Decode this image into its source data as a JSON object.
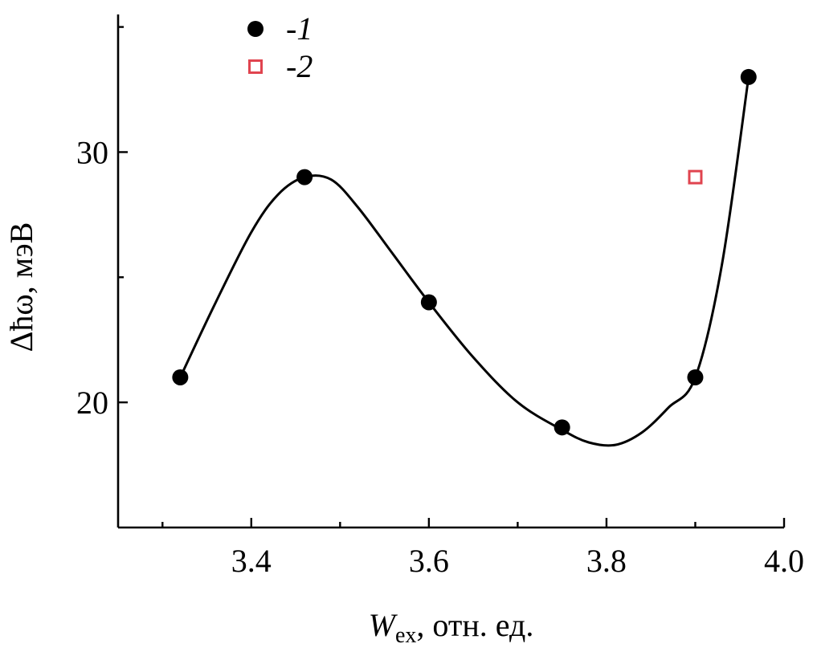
{
  "chart_data": {
    "type": "scatter",
    "title": "",
    "xlabel": {
      "main": "W",
      "sub": "ex",
      "rest": ", отн. ед."
    },
    "ylabel": "Δħω, мэВ",
    "xlim": [
      3.25,
      4.0
    ],
    "ylim": [
      15,
      35.5
    ],
    "x_major_ticks": [
      3.4,
      3.6,
      3.8,
      4.0
    ],
    "x_tick_labels": [
      "3.4",
      "3.6",
      "3.8",
      "4.0"
    ],
    "x_minor_ticks": [
      3.3,
      3.5,
      3.7,
      3.9
    ],
    "y_major_ticks": [
      20,
      30
    ],
    "y_tick_labels": [
      "20",
      "30"
    ],
    "y_minor_ticks": [
      25,
      35
    ],
    "grid": false,
    "legend_position": "top-left",
    "series": [
      {
        "name": "-1",
        "marker": "filled-circle",
        "color": "#000000",
        "x": [
          3.32,
          3.46,
          3.6,
          3.75,
          3.9,
          3.96
        ],
        "y": [
          21,
          29,
          24,
          19,
          21,
          33
        ]
      },
      {
        "name": "-2",
        "marker": "open-square",
        "color": "#e0444f",
        "x": [
          3.9
        ],
        "y": [
          29
        ]
      }
    ],
    "fit_curve": {
      "color": "#000000",
      "x": [
        3.32,
        3.36,
        3.4,
        3.43,
        3.46,
        3.49,
        3.52,
        3.56,
        3.6,
        3.65,
        3.7,
        3.75,
        3.78,
        3.81,
        3.84,
        3.87,
        3.9,
        3.93,
        3.96
      ],
      "y": [
        21,
        24,
        26.8,
        28.3,
        29,
        28.9,
        27.8,
        25.9,
        24,
        21.8,
        20,
        18.9,
        18.4,
        18.3,
        18.8,
        19.8,
        21,
        25.5,
        33
      ]
    }
  }
}
